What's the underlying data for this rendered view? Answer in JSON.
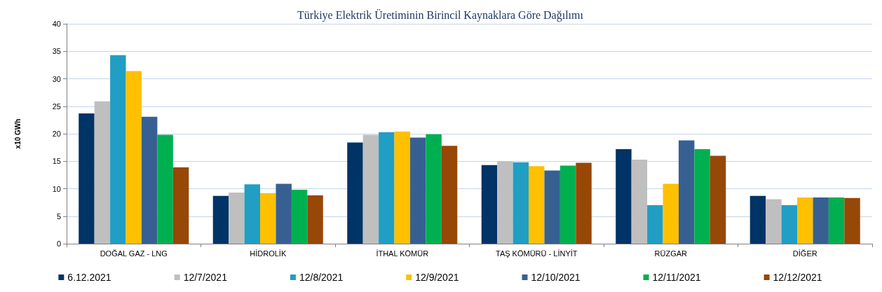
{
  "chart_data": {
    "type": "bar",
    "title": "Türkiye Elektrik Üretiminin Birincil Kaynaklara Göre Dağılımı",
    "ylabel": "x10 GWh",
    "categories": [
      "DOĞAL GAZ - LNG",
      "HİDROLİK",
      "İTHAL KÖMÜR",
      "TAŞ KÖMÜRÜ - LİNYİT",
      "RÜZGAR",
      "DİĞER"
    ],
    "series": [
      {
        "name": "6.12.2021",
        "color": "#003366",
        "values": [
          23.7,
          8.7,
          18.4,
          14.3,
          17.2,
          8.7
        ]
      },
      {
        "name": "12/7/2021",
        "color": "#bfbfbf",
        "values": [
          25.9,
          9.3,
          19.8,
          15.0,
          15.3,
          8.1
        ]
      },
      {
        "name": "12/8/2021",
        "color": "#219ec3",
        "values": [
          34.3,
          10.8,
          20.3,
          14.8,
          7.0,
          7.0
        ]
      },
      {
        "name": "12/9/2021",
        "color": "#ffc000",
        "values": [
          31.4,
          9.2,
          20.4,
          14.1,
          10.9,
          8.4
        ]
      },
      {
        "name": "12/10/2021",
        "color": "#376092",
        "values": [
          23.1,
          10.9,
          19.3,
          13.3,
          18.8,
          8.4
        ]
      },
      {
        "name": "12/11/2021",
        "color": "#00b050",
        "values": [
          19.8,
          9.8,
          19.9,
          14.2,
          17.2,
          8.4
        ]
      },
      {
        "name": "12/12/2021",
        "color": "#974706",
        "values": [
          13.9,
          8.8,
          17.8,
          14.7,
          16.0,
          8.3
        ]
      }
    ],
    "ylim": [
      0,
      40
    ],
    "yticks": [
      0,
      5,
      10,
      15,
      20,
      25,
      30,
      35,
      40
    ],
    "grid": "y",
    "legend": "bottom"
  }
}
